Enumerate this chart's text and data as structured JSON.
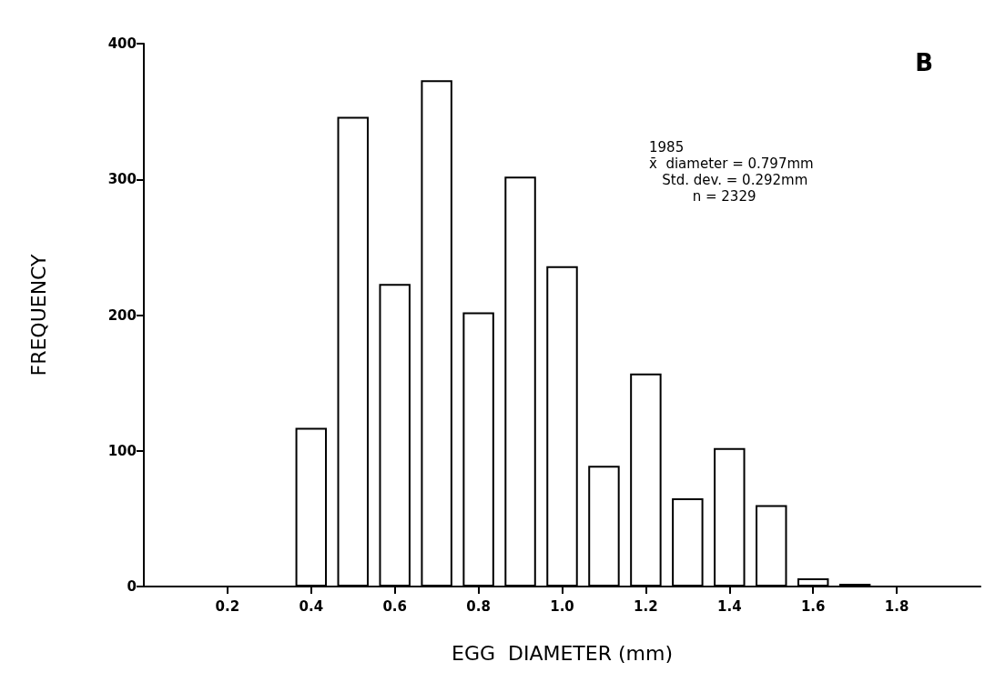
{
  "chart_data": {
    "type": "bar",
    "xlabel": "EGG  DIAMETER (mm)",
    "ylabel": "FREQUENCY",
    "x": [
      0.4,
      0.5,
      0.6,
      0.7,
      0.8,
      0.9,
      1.0,
      1.1,
      1.2,
      1.3,
      1.4,
      1.5,
      1.6,
      1.7
    ],
    "values": [
      117,
      346,
      223,
      373,
      202,
      302,
      236,
      89,
      157,
      65,
      102,
      60,
      6,
      2
    ],
    "color": "#ffffff",
    "xlim": [
      0,
      2.0
    ],
    "xticks": [
      0.2,
      0.4,
      0.6,
      0.8,
      {
        "value": 1.0,
        "label": "1.0"
      },
      1.2,
      1.4,
      1.6,
      1.8
    ],
    "ylim": [
      0,
      400
    ],
    "yticks": [
      0,
      100,
      200,
      300,
      400
    ],
    "grid": false,
    "annotations": [
      "B",
      "1985\nx̄  diameter = 0.797mm\n   Std. dev. = 0.292mm\n          n = 2329"
    ]
  }
}
